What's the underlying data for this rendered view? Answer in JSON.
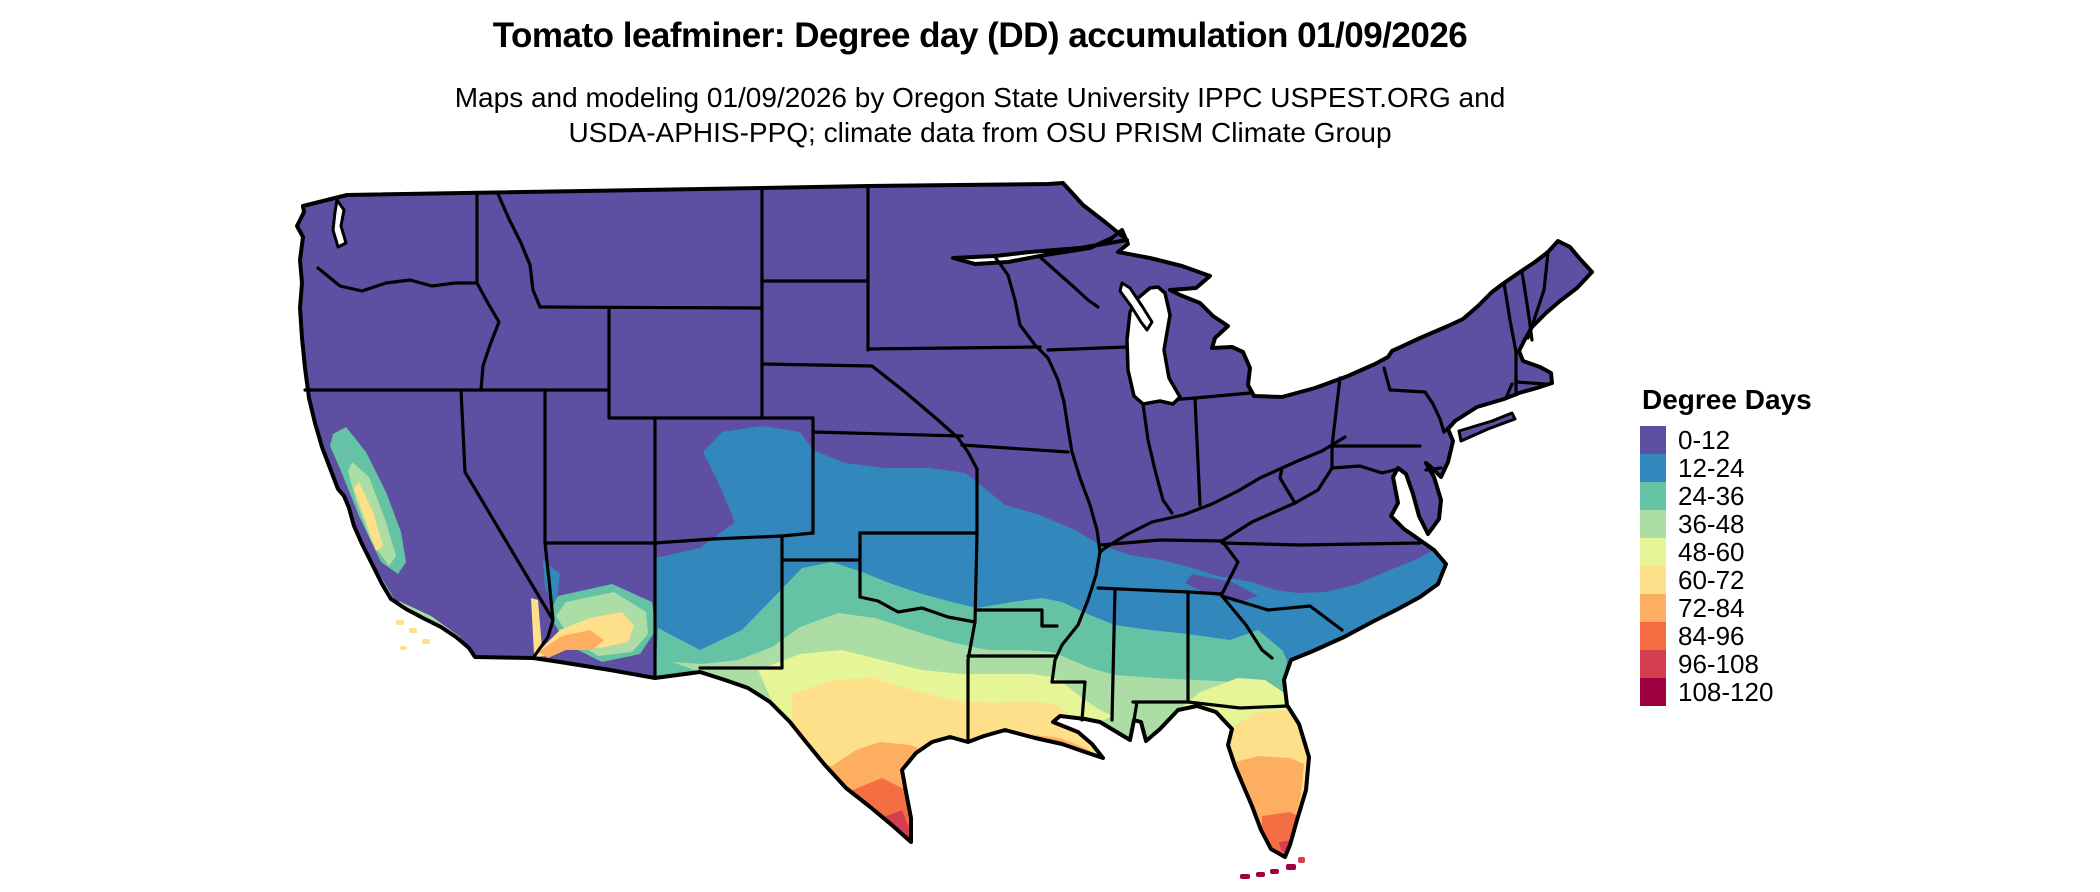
{
  "title": "Tomato leafminer: Degree day (DD) accumulation 01/09/2026",
  "subtitle_line1": "Maps and modeling 01/09/2026 by Oregon State University IPPC USPEST.ORG and",
  "subtitle_line2": "USDA-APHIS-PPQ; climate data from OSU PRISM Climate Group",
  "legend": {
    "title": "Degree Days",
    "items": [
      {
        "label": "0-12",
        "color": "#5e4fa2"
      },
      {
        "label": "12-24",
        "color": "#3288bd"
      },
      {
        "label": "24-36",
        "color": "#66c2a5"
      },
      {
        "label": "36-48",
        "color": "#abdda4"
      },
      {
        "label": "48-60",
        "color": "#e6f598"
      },
      {
        "label": "60-72",
        "color": "#fee08b"
      },
      {
        "label": "72-84",
        "color": "#fdae61"
      },
      {
        "label": "84-96",
        "color": "#f46d43"
      },
      {
        "label": "96-108",
        "color": "#d53e4f"
      },
      {
        "label": "108-120",
        "color": "#9e0142"
      }
    ]
  },
  "map": {
    "region": "Contiguous United States with state boundaries",
    "boundary_color": "#000000",
    "water_color": "#ffffff"
  },
  "chart_data": {
    "type": "heatmap",
    "subtype": "choropleth_degree_day_map",
    "title": "Tomato leafminer: Degree day (DD) accumulation 01/09/2026",
    "value_label": "Degree Days",
    "bins": [
      {
        "range": [
          0,
          12
        ],
        "color": "#5e4fa2"
      },
      {
        "range": [
          12,
          24
        ],
        "color": "#3288bd"
      },
      {
        "range": [
          24,
          36
        ],
        "color": "#66c2a5"
      },
      {
        "range": [
          36,
          48
        ],
        "color": "#abdda4"
      },
      {
        "range": [
          48,
          60
        ],
        "color": "#e6f598"
      },
      {
        "range": [
          60,
          72
        ],
        "color": "#fee08b"
      },
      {
        "range": [
          72,
          84
        ],
        "color": "#fdae61"
      },
      {
        "range": [
          84,
          96
        ],
        "color": "#f46d43"
      },
      {
        "range": [
          96,
          108
        ],
        "color": "#d53e4f"
      },
      {
        "range": [
          108,
          120
        ],
        "color": "#9e0142"
      }
    ],
    "pattern": [
      {
        "area": "Northern, central and eastern US (WA-OR-ID-MT-WY-UT-NV-Dakotas-Midwest-Northeast-KY-TN-VA)",
        "value": "0-12"
      },
      {
        "area": "Eastern Colorado, central Kansas, Oklahoma north, southern Missouri, southern NM, northern MS/AL/GA, upstate SC, southern NC coast",
        "value": "12-24"
      },
      {
        "area": "Central Oklahoma, Arkansas, west Texas, central MS/AL/GA, SC coast, CA central valley, AZ mid-elevations",
        "value": "24-36"
      },
      {
        "area": "North Texas, northern Louisiana, southern MS/AL/GA, far north Florida",
        "value": "36-48"
      },
      {
        "area": "Central Texas, central Louisiana, southeast Georgia, north Florida",
        "value": "48-60"
      },
      {
        "area": "South-central Texas, Louisiana coast, central Florida, low deserts of AZ/CA",
        "value": "60-72"
      },
      {
        "area": "South Texas, Yuma/Phoenix AZ, SoCal coast spots, south-central Florida",
        "value": "72-84"
      },
      {
        "area": "Deep south Texas, southern Florida",
        "value": "84-96"
      },
      {
        "area": "Rio Grande Valley tip of Texas, far southern Florida",
        "value": "96-108"
      },
      {
        "area": "Southernmost Texas tip and Florida Keys",
        "value": "108-120"
      }
    ]
  }
}
